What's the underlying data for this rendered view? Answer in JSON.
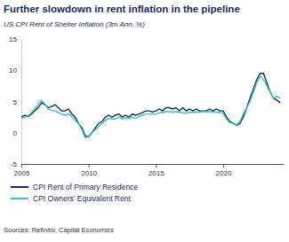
{
  "chart_data": {
    "type": "line",
    "title": "Further slowdown in rent inflation in the pipeline",
    "subtitle": "US CPI Rent of Shelter Inflation (3m Ann. %)",
    "source": "Sources: Refinitiv, Capital Economics",
    "x": [
      2005.0,
      2005.25,
      2005.5,
      2005.75,
      2006.0,
      2006.25,
      2006.5,
      2006.75,
      2007.0,
      2007.25,
      2007.5,
      2007.75,
      2008.0,
      2008.25,
      2008.5,
      2008.75,
      2009.0,
      2009.25,
      2009.5,
      2009.75,
      2010.0,
      2010.25,
      2010.5,
      2010.75,
      2011.0,
      2011.25,
      2011.5,
      2011.75,
      2012.0,
      2012.25,
      2012.5,
      2012.75,
      2013.0,
      2013.25,
      2013.5,
      2013.75,
      2014.0,
      2014.25,
      2014.5,
      2014.75,
      2015.0,
      2015.25,
      2015.5,
      2015.75,
      2016.0,
      2016.25,
      2016.5,
      2016.75,
      2017.0,
      2017.25,
      2017.5,
      2017.75,
      2018.0,
      2018.25,
      2018.5,
      2018.75,
      2019.0,
      2019.25,
      2019.5,
      2019.75,
      2020.0,
      2020.25,
      2020.5,
      2020.75,
      2021.0,
      2021.25,
      2021.5,
      2021.75,
      2022.0,
      2022.25,
      2022.5,
      2022.75,
      2023.0,
      2023.25,
      2023.5,
      2023.75,
      2024.0,
      2024.25
    ],
    "series": [
      {
        "name": "CPI Rent of Primary Residence",
        "color": "#1b2a5c",
        "values": [
          2.5,
          2.8,
          2.6,
          3.0,
          3.5,
          4.0,
          4.8,
          4.5,
          4.0,
          4.2,
          4.5,
          4.0,
          3.5,
          3.5,
          3.8,
          3.0,
          2.5,
          1.5,
          0.8,
          -0.5,
          -0.6,
          0.0,
          0.8,
          1.5,
          1.8,
          2.5,
          2.8,
          2.5,
          2.8,
          3.0,
          2.5,
          2.8,
          2.5,
          3.0,
          2.8,
          3.0,
          3.2,
          3.5,
          3.5,
          3.3,
          3.5,
          3.8,
          3.5,
          4.0,
          4.0,
          3.8,
          4.0,
          3.5,
          4.0,
          3.5,
          3.8,
          3.5,
          3.8,
          3.5,
          3.5,
          3.5,
          3.8,
          3.5,
          3.8,
          3.5,
          3.5,
          2.5,
          1.8,
          1.5,
          1.2,
          1.5,
          2.5,
          4.0,
          5.5,
          7.0,
          8.5,
          9.5,
          9.5,
          8.0,
          6.5,
          5.5,
          5.2,
          4.8
        ]
      },
      {
        "name": "CPI Owners' Equivalent Rent",
        "color": "#3dbfbf",
        "values": [
          2.3,
          2.5,
          2.7,
          3.2,
          3.8,
          4.5,
          5.2,
          4.6,
          3.8,
          3.6,
          3.5,
          3.2,
          3.0,
          2.8,
          3.0,
          2.6,
          2.0,
          1.5,
          0.5,
          -0.8,
          -0.5,
          0.0,
          0.5,
          1.0,
          1.5,
          2.0,
          2.3,
          2.2,
          2.2,
          2.5,
          2.2,
          2.4,
          2.3,
          2.5,
          2.3,
          2.6,
          2.8,
          3.0,
          3.0,
          3.0,
          3.0,
          3.2,
          3.2,
          3.4,
          3.4,
          3.3,
          3.4,
          3.3,
          3.2,
          3.1,
          3.3,
          3.2,
          3.3,
          3.3,
          3.4,
          3.3,
          3.4,
          3.3,
          3.3,
          3.2,
          3.1,
          2.2,
          1.6,
          1.5,
          1.3,
          1.8,
          3.0,
          4.0,
          5.0,
          6.5,
          8.0,
          9.0,
          8.5,
          7.5,
          6.5,
          5.5,
          5.8,
          5.5
        ]
      }
    ],
    "xlim": [
      2005,
      2024.5
    ],
    "xticks": [
      2005,
      2010,
      2015,
      2020
    ],
    "ylim": [
      -5,
      15
    ],
    "yticks": [
      -5,
      0,
      5,
      10,
      15
    ],
    "grid": false,
    "legend": "bottom"
  }
}
